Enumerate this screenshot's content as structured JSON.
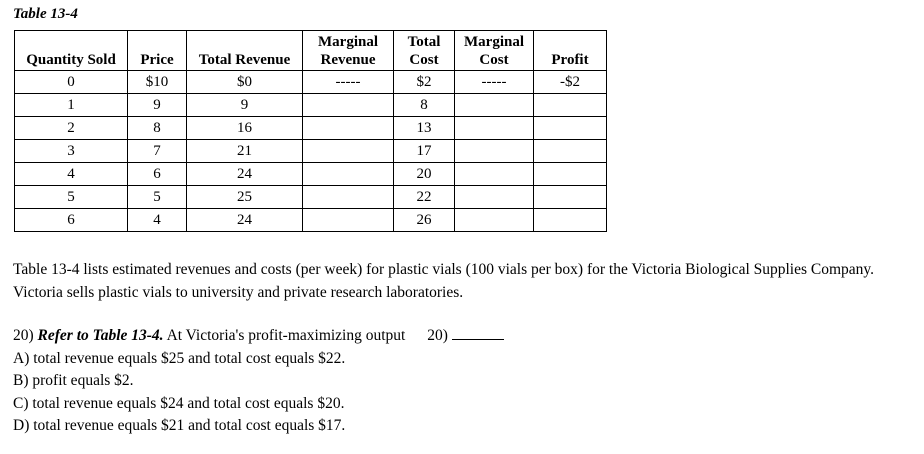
{
  "table_title": "Table 13-4",
  "columns": [
    [
      "Quantity Sold"
    ],
    [
      "Price"
    ],
    [
      "Total Revenue"
    ],
    [
      "Marginal",
      "Revenue"
    ],
    [
      "Total",
      "Cost"
    ],
    [
      "Marginal",
      "Cost"
    ],
    [
      "Profit"
    ]
  ],
  "rows": [
    [
      "0",
      "$10",
      "$0",
      "-----",
      "$2",
      "-----",
      "-$2"
    ],
    [
      "1",
      "9",
      "9",
      "",
      "8",
      "",
      ""
    ],
    [
      "2",
      "8",
      "16",
      "",
      "13",
      "",
      ""
    ],
    [
      "3",
      "7",
      "21",
      "",
      "17",
      "",
      ""
    ],
    [
      "4",
      "6",
      "24",
      "",
      "20",
      "",
      ""
    ],
    [
      "5",
      "5",
      "25",
      "",
      "22",
      "",
      ""
    ],
    [
      "6",
      "4",
      "24",
      "",
      "26",
      "",
      ""
    ]
  ],
  "paragraph": "Table 13-4 lists estimated revenues and costs (per week) for plastic vials (100 vials per box) for the Victoria Biological Supplies Company. Victoria sells plastic vials to university and private research laboratories.",
  "question": {
    "number": "20)",
    "ref": "Refer to Table 13-4.",
    "text": "At Victoria's profit-maximizing output",
    "answer_label": "20)",
    "options": [
      "A) total revenue equals $25 and total cost equals $22.",
      "B) profit equals $2.",
      "C) total revenue equals $24 and total cost equals $20.",
      "D) total revenue equals $21 and total cost equals $17."
    ]
  }
}
